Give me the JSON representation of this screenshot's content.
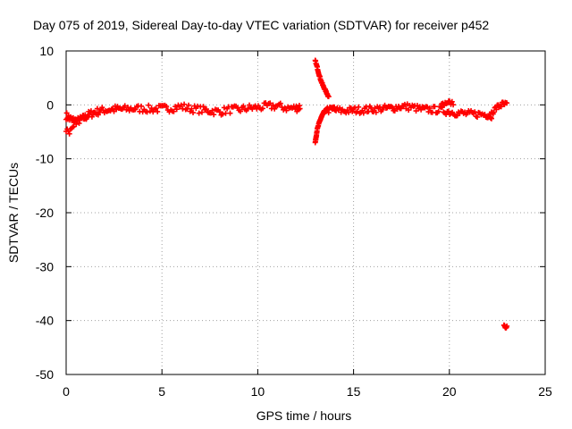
{
  "chart_data": {
    "type": "scatter",
    "title": "Day 075 of 2019, Sidereal Day-to-day VTEC variation (SDTVAR) for receiver p452",
    "xlabel": "GPS time / hours",
    "ylabel": "SDTVAR / TECUs",
    "xlim": [
      0,
      25
    ],
    "ylim": [
      -50,
      10
    ],
    "xticks": [
      0,
      5,
      10,
      15,
      20,
      25
    ],
    "yticks": [
      10,
      0,
      -10,
      -20,
      -30,
      -40,
      -50
    ],
    "grid": true,
    "marker": "plus",
    "color": "#ff0000",
    "series": [
      {
        "name": "p452",
        "segments": [
          {
            "x": [
              0.0,
              0.2,
              0.4,
              0.6,
              0.8,
              1.0,
              1.2,
              1.5,
              1.8,
              2.2,
              2.6,
              3.0,
              3.5,
              4.0,
              4.5,
              5.0,
              5.5,
              6.0,
              6.5,
              7.0,
              7.5,
              8.0,
              8.5,
              9.0,
              9.5,
              10.0,
              10.5,
              11.0,
              11.5,
              12.0,
              12.2
            ],
            "y": [
              -2.0,
              -2.6,
              -2.9,
              -3.0,
              -2.7,
              -2.3,
              -1.8,
              -1.4,
              -1.1,
              -0.9,
              -0.8,
              -0.8,
              -0.7,
              -0.7,
              -0.8,
              -0.7,
              -0.6,
              -0.3,
              -0.7,
              -0.9,
              -1.1,
              -1.3,
              -0.9,
              -0.9,
              -0.6,
              -0.5,
              -0.3,
              -0.2,
              -0.6,
              -0.6,
              -0.4
            ],
            "spread": 1.4
          },
          {
            "x": [
              0.0,
              0.2,
              0.4
            ],
            "y": [
              -4.6,
              -4.9,
              -4.5
            ],
            "spread": 1.2
          },
          {
            "x": [
              13.0,
              13.1,
              13.2,
              13.3,
              13.4,
              13.5,
              13.6,
              13.7
            ],
            "y": [
              8.2,
              7.0,
              5.6,
              4.5,
              3.6,
              2.9,
              2.2,
              1.5
            ],
            "spread": 0.3
          },
          {
            "x": [
              13.0,
              13.05,
              13.1,
              13.2,
              13.3,
              13.4,
              13.5,
              13.7,
              14.0
            ],
            "y": [
              -7.0,
              -5.8,
              -4.6,
              -3.4,
              -2.4,
              -1.7,
              -1.1,
              -0.7,
              -0.5
            ],
            "spread": 0.3
          },
          {
            "x": [
              13.5,
              14.0,
              14.5,
              15.0,
              15.5,
              16.0,
              16.5,
              17.0,
              17.5,
              18.0,
              18.5,
              19.0,
              19.5,
              20.0,
              20.5,
              21.0,
              21.5,
              22.0,
              22.2
            ],
            "y": [
              -0.9,
              -1.0,
              -1.1,
              -1.0,
              -0.9,
              -0.8,
              -0.7,
              -0.6,
              -0.3,
              -0.4,
              -0.8,
              -0.9,
              -0.9,
              -1.3,
              -1.5,
              -1.7,
              -1.7,
              -1.8,
              -1.9
            ],
            "spread": 1.3
          },
          {
            "x": [
              19.6,
              19.8,
              20.0,
              20.2
            ],
            "y": [
              0.0,
              0.3,
              0.5,
              0.2
            ],
            "spread": 0.6
          },
          {
            "x": [
              22.2,
              22.4,
              22.6,
              22.8,
              23.0
            ],
            "y": [
              -1.5,
              -0.7,
              -0.2,
              0.1,
              0.0
            ],
            "spread": 1.1
          },
          {
            "x": [
              22.85,
              22.9,
              22.95,
              23.0
            ],
            "y": [
              -40.9,
              -41.2,
              -41.4,
              -41.1
            ],
            "spread": 0.2
          }
        ]
      }
    ]
  }
}
